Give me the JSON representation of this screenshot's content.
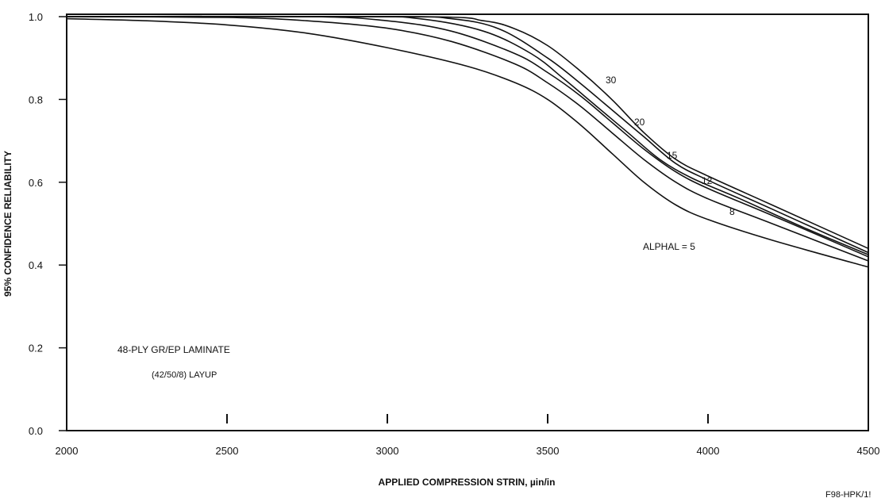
{
  "chart_data": {
    "type": "line",
    "title": "",
    "xlabel": "APPLIED COMPRESSION STRIN, µin/in",
    "ylabel": "95% CONFIDENCE RELIABILITY",
    "xlim": [
      2000,
      4500
    ],
    "ylim": [
      0.0,
      1.0
    ],
    "x_ticks": [
      "2000",
      "2500",
      "3000",
      "3500",
      "4000",
      "4500"
    ],
    "y_ticks": [
      "0.0",
      "0.2",
      "0.4",
      "0.6",
      "0.8",
      "1.0"
    ],
    "grid": false,
    "legend": "none",
    "annotations": {
      "laminate": "48-PLY GR/EP LAMINATE",
      "layup": "(42/50/8) LAYUP",
      "figure_id": "F98-HPK/1!"
    },
    "series": [
      {
        "name": "ALPHAL = 5",
        "x": [
          2000,
          2250,
          2500,
          2750,
          3000,
          3250,
          3400,
          3500,
          3600,
          3700,
          3800,
          3900,
          4000,
          4200,
          4500
        ],
        "y": [
          0.995,
          0.99,
          0.98,
          0.96,
          0.925,
          0.88,
          0.84,
          0.8,
          0.74,
          0.67,
          0.6,
          0.545,
          0.51,
          0.46,
          0.395
        ]
      },
      {
        "name": "8",
        "x": [
          2000,
          2500,
          2750,
          3000,
          3200,
          3400,
          3500,
          3600,
          3700,
          3800,
          3900,
          4000,
          4200,
          4500
        ],
        "y": [
          1.0,
          0.998,
          0.99,
          0.972,
          0.94,
          0.885,
          0.84,
          0.785,
          0.72,
          0.655,
          0.6,
          0.56,
          0.5,
          0.41
        ]
      },
      {
        "name": "12",
        "x": [
          2000,
          2750,
          3000,
          3200,
          3400,
          3500,
          3600,
          3700,
          3800,
          3900,
          4000,
          4200,
          4500
        ],
        "y": [
          1.0,
          1.0,
          0.99,
          0.965,
          0.91,
          0.865,
          0.81,
          0.745,
          0.68,
          0.625,
          0.585,
          0.52,
          0.42
        ]
      },
      {
        "name": "15",
        "x": [
          2000,
          2900,
          3100,
          3300,
          3450,
          3550,
          3650,
          3750,
          3850,
          3950,
          4100,
          4300,
          4500
        ],
        "y": [
          1.0,
          1.0,
          0.995,
          0.965,
          0.91,
          0.85,
          0.785,
          0.72,
          0.655,
          0.61,
          0.56,
          0.49,
          0.425
        ]
      },
      {
        "name": "20",
        "x": [
          2000,
          3000,
          3200,
          3350,
          3500,
          3600,
          3700,
          3800,
          3900,
          4000,
          4200,
          4500
        ],
        "y": [
          1.0,
          1.0,
          0.995,
          0.97,
          0.9,
          0.84,
          0.775,
          0.71,
          0.645,
          0.605,
          0.535,
          0.43
        ]
      },
      {
        "name": "30",
        "x": [
          2000,
          3100,
          3300,
          3400,
          3500,
          3600,
          3700,
          3800,
          3900,
          4000,
          4200,
          4500
        ],
        "y": [
          1.0,
          1.0,
          0.99,
          0.97,
          0.93,
          0.87,
          0.8,
          0.72,
          0.655,
          0.615,
          0.545,
          0.44
        ]
      }
    ]
  }
}
